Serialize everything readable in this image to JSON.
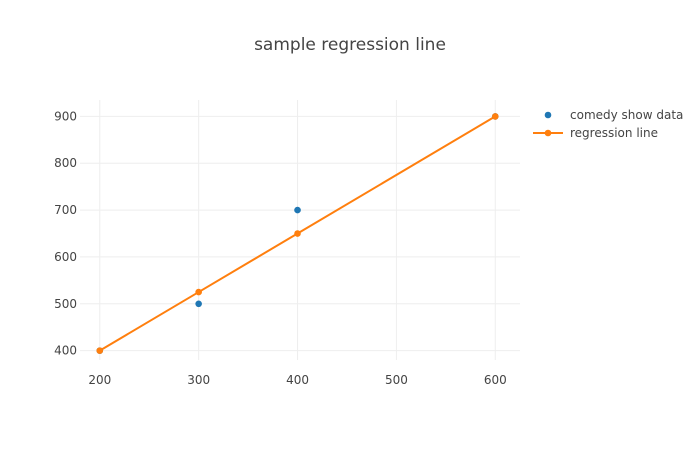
{
  "chart_data": {
    "type": "scatter",
    "title": "sample regression line",
    "xlabel": "",
    "ylabel": "",
    "xlim": [
      180,
      625
    ],
    "ylim": [
      380,
      935
    ],
    "x_ticks": [
      200,
      300,
      400,
      500,
      600
    ],
    "y_ticks": [
      400,
      500,
      600,
      700,
      800,
      900
    ],
    "grid": true,
    "legend_position": "top-right",
    "series": [
      {
        "name": "comedy show data",
        "mode": "markers",
        "color": "#1f77b4",
        "x": [
          200,
          300,
          400,
          600
        ],
        "y": [
          400,
          500,
          700,
          900
        ]
      },
      {
        "name": "regression line",
        "mode": "lines+markers",
        "color": "#ff7f0e",
        "x": [
          200,
          300,
          400,
          600
        ],
        "y": [
          400,
          525,
          650,
          900
        ]
      }
    ]
  }
}
